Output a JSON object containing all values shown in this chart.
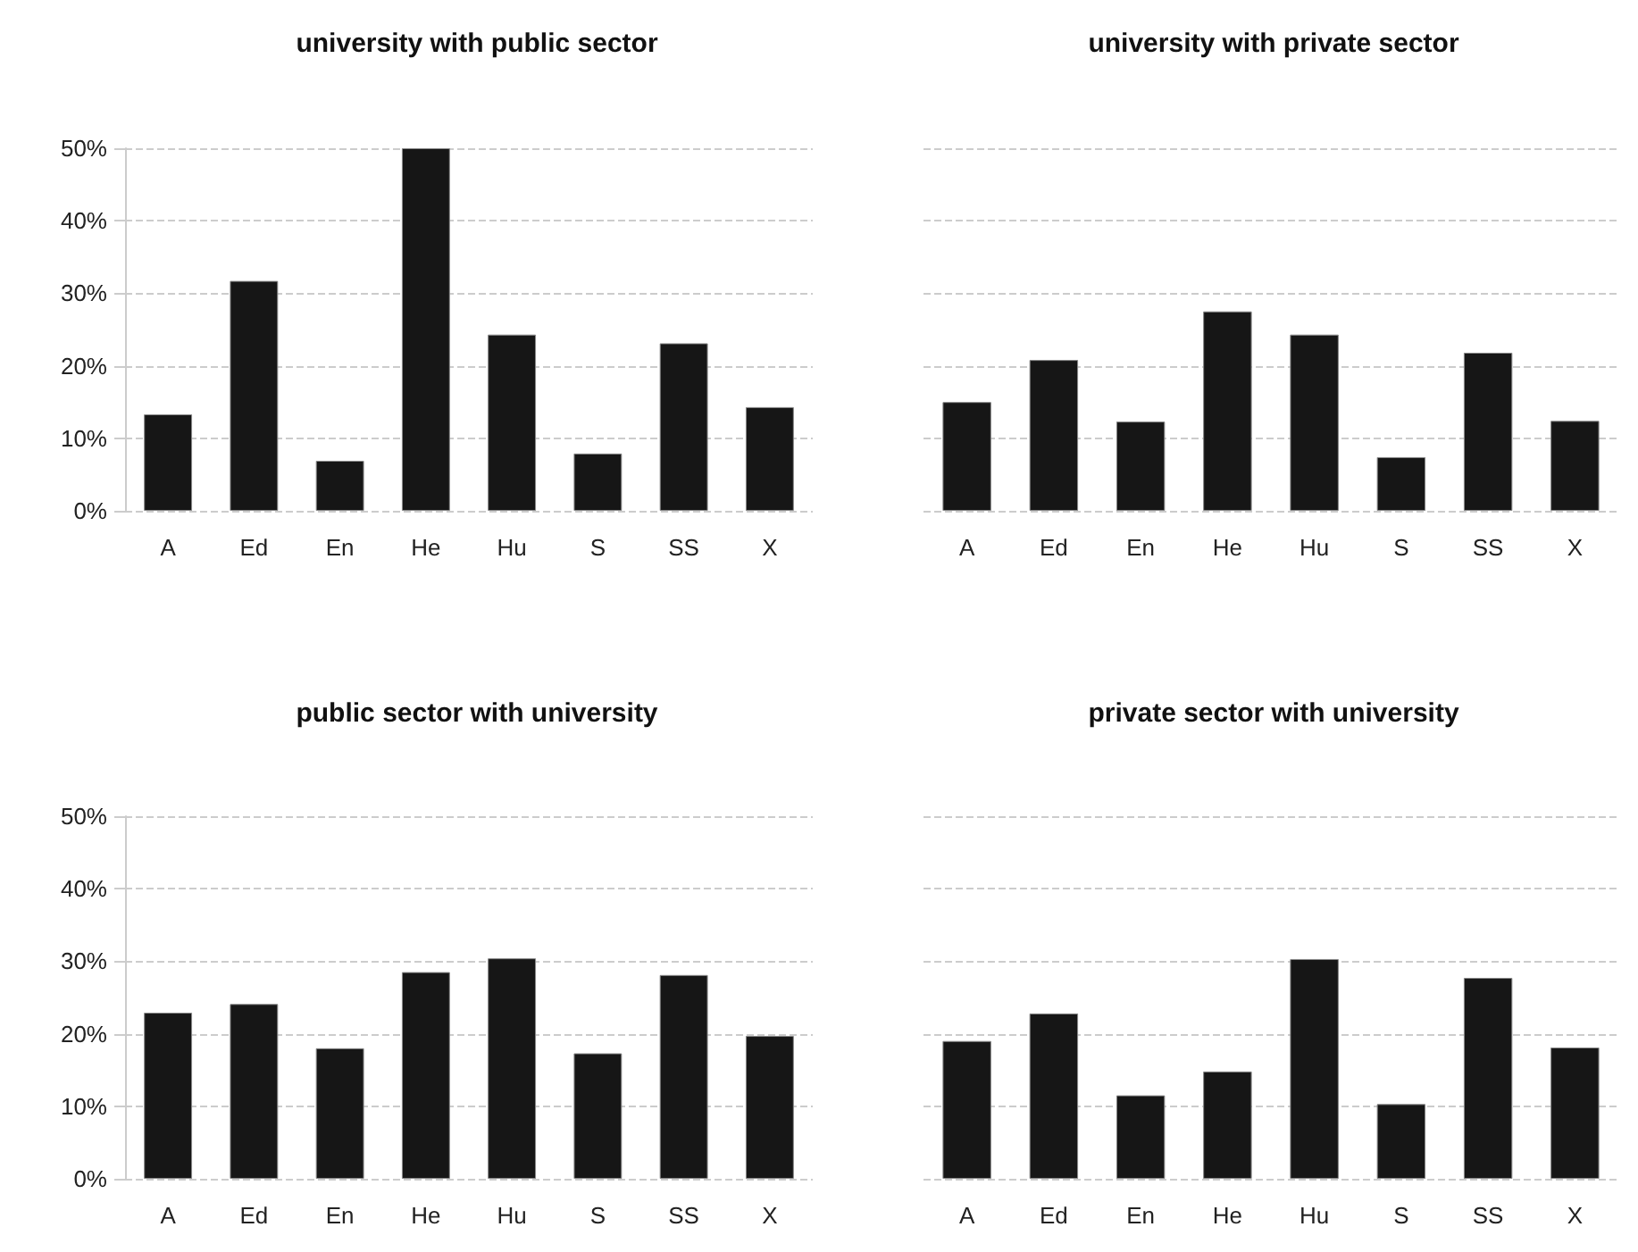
{
  "chart_data": [
    {
      "type": "bar",
      "title": "university with public sector",
      "categories": [
        "A",
        "Ed",
        "En",
        "He",
        "Hu",
        "S",
        "SS",
        "X"
      ],
      "values": [
        13.3,
        31.7,
        6.9,
        50,
        24.3,
        7.9,
        23.1,
        14.3
      ],
      "color": "#161616",
      "ylim": [
        0,
        50
      ],
      "yticks": [
        {
          "value": 0,
          "label": "0%"
        },
        {
          "value": 10,
          "label": "10%"
        },
        {
          "value": 20,
          "label": "20%"
        },
        {
          "value": 30,
          "label": "30%"
        },
        {
          "value": 40,
          "label": "40%"
        },
        {
          "value": 50,
          "label": "50%"
        }
      ],
      "grid": "y"
    },
    {
      "type": "bar",
      "title": "university with private sector",
      "categories": [
        "A",
        "Ed",
        "En",
        "He",
        "Hu",
        "S",
        "SS",
        "X"
      ],
      "values": [
        15.0,
        20.8,
        12.3,
        27.5,
        24.3,
        7.4,
        21.8,
        12.4
      ],
      "color": "#161616",
      "ylim": [
        0,
        50
      ],
      "yticks": [
        0,
        10,
        20,
        30,
        40,
        50
      ],
      "grid": "y",
      "tick_labels": "x"
    },
    {
      "type": "bar",
      "title": "public sector with university",
      "categories": [
        "A",
        "Ed",
        "En",
        "He",
        "Hu",
        "S",
        "SS",
        "X"
      ],
      "values": [
        22.9,
        24.1,
        18.0,
        28.5,
        30.4,
        17.3,
        28.1,
        19.7
      ],
      "color": "#161616",
      "ylim": [
        0,
        50
      ],
      "yticks": [
        {
          "value": 0,
          "label": "0%"
        },
        {
          "value": 10,
          "label": "10%"
        },
        {
          "value": 20,
          "label": "20%"
        },
        {
          "value": 30,
          "label": "30%"
        },
        {
          "value": 40,
          "label": "40%"
        },
        {
          "value": 50,
          "label": "50%"
        }
      ],
      "grid": "y"
    },
    {
      "type": "bar",
      "title": "private sector with university",
      "categories": [
        "A",
        "Ed",
        "En",
        "He",
        "Hu",
        "S",
        "SS",
        "X"
      ],
      "values": [
        19.0,
        22.8,
        11.5,
        14.8,
        30.3,
        10.3,
        27.7,
        18.1
      ],
      "color": "#161616",
      "ylim": [
        0,
        50
      ],
      "yticks": [
        0,
        10,
        20,
        30,
        40,
        50
      ],
      "grid": "y",
      "tick_labels": "x"
    }
  ]
}
